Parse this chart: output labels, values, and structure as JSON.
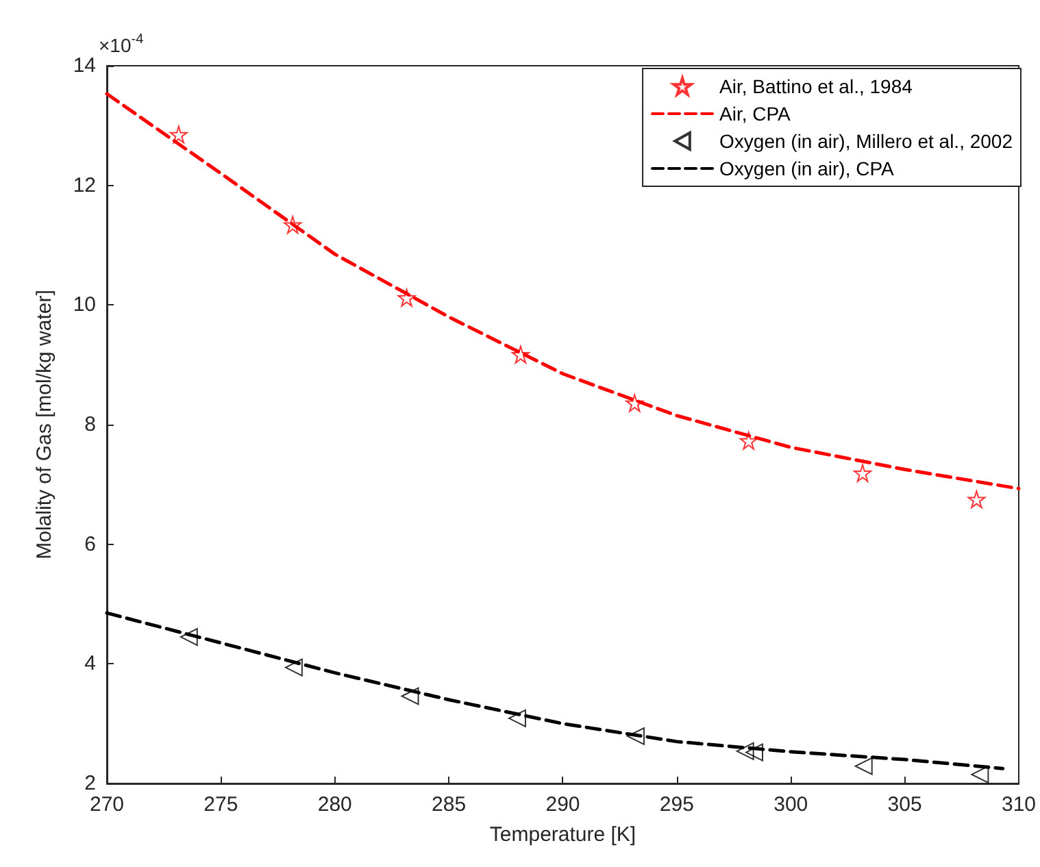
{
  "chart_data": {
    "type": "scatter",
    "xlabel": "Temperature [K]",
    "ylabel": "Molality of Gas [mol/kg water]",
    "annotations": [
      "×10$^{-4}$"
    ],
    "xlim": [
      270,
      310
    ],
    "xticks": [
      270,
      275,
      280,
      285,
      290,
      295,
      300,
      305,
      310
    ],
    "ylim": [
      2,
      14
    ],
    "yticks": [
      2,
      4,
      6,
      8,
      10,
      12,
      14
    ],
    "grid": false,
    "legend": "top right",
    "series": [
      {
        "name": "Air, Battino et al., 1984",
        "marker": "star",
        "color": "#ff0000",
        "x": [
          273.15,
          278.15,
          283.15,
          288.15,
          293.15,
          298.15,
          303.15,
          308.15
        ],
        "values": [
          12.85,
          11.34,
          10.12,
          9.17,
          8.36,
          7.73,
          7.19,
          6.75
        ]
      },
      {
        "name": "Air, CPA",
        "type": "line",
        "line_style": "dashed",
        "color": "#ff0000",
        "x": [
          270,
          275,
          280,
          285,
          290,
          295,
          300,
          305,
          310
        ],
        "values": [
          13.53,
          12.2,
          10.85,
          9.8,
          8.85,
          8.15,
          7.62,
          7.25,
          6.93
        ]
      },
      {
        "name": "Oxygen (in air), Millero et al., 2002",
        "marker": "triangle",
        "color": "#000000",
        "x": [
          273.6,
          278.2,
          283.3,
          288,
          293.2,
          298,
          298.4,
          303.2,
          308.3
        ],
        "values": [
          4.45,
          3.94,
          3.46,
          3.09,
          2.79,
          2.54,
          2.52,
          2.29,
          2.15
        ]
      },
      {
        "name": "Oxygen (in air), CPA",
        "type": "line",
        "line_style": "dashed",
        "color": "#000000",
        "x": [
          270,
          275,
          280,
          285,
          290,
          295,
          300,
          305,
          309.3
        ],
        "values": [
          4.85,
          4.35,
          3.85,
          3.4,
          3.0,
          2.7,
          2.53,
          2.4,
          2.25
        ]
      }
    ]
  }
}
